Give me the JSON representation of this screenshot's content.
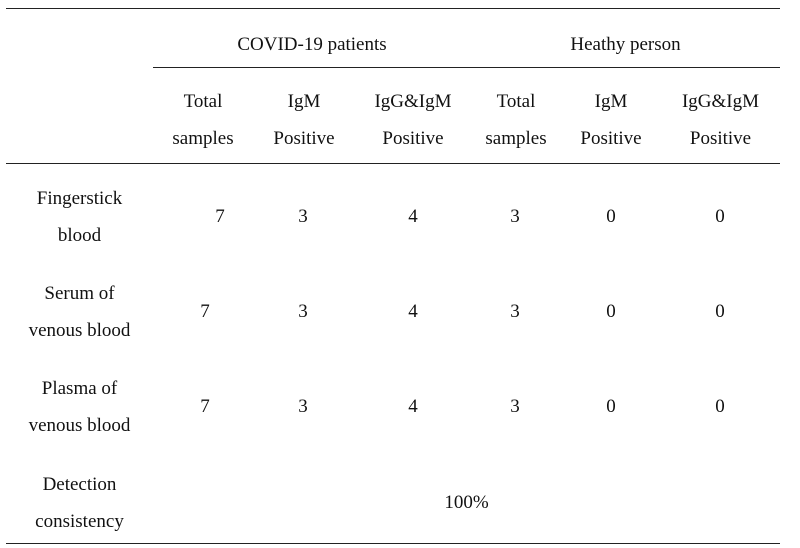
{
  "table": {
    "groups": [
      "COVID-19 patients",
      "Heathy person"
    ],
    "subheaders": [
      [
        "Total",
        "samples"
      ],
      [
        "IgM",
        "Positive"
      ],
      [
        "IgG&IgM",
        "Positive"
      ],
      [
        "Total",
        "samples"
      ],
      [
        "IgM",
        "Positive"
      ],
      [
        "IgG&IgM",
        "Positive"
      ]
    ],
    "rows": [
      {
        "label": [
          "Fingerstick",
          "blood"
        ],
        "values": [
          "7",
          "3",
          "4",
          "3",
          "0",
          "0"
        ]
      },
      {
        "label": [
          "Serum of",
          "venous blood"
        ],
        "values": [
          "7",
          "3",
          "4",
          "3",
          "0",
          "0"
        ]
      },
      {
        "label": [
          "Plasma of",
          "venous blood"
        ],
        "values": [
          "7",
          "3",
          "4",
          "3",
          "0",
          "0"
        ]
      }
    ],
    "detection": {
      "label": [
        "Detection",
        "consistency"
      ],
      "value": "100%"
    }
  }
}
